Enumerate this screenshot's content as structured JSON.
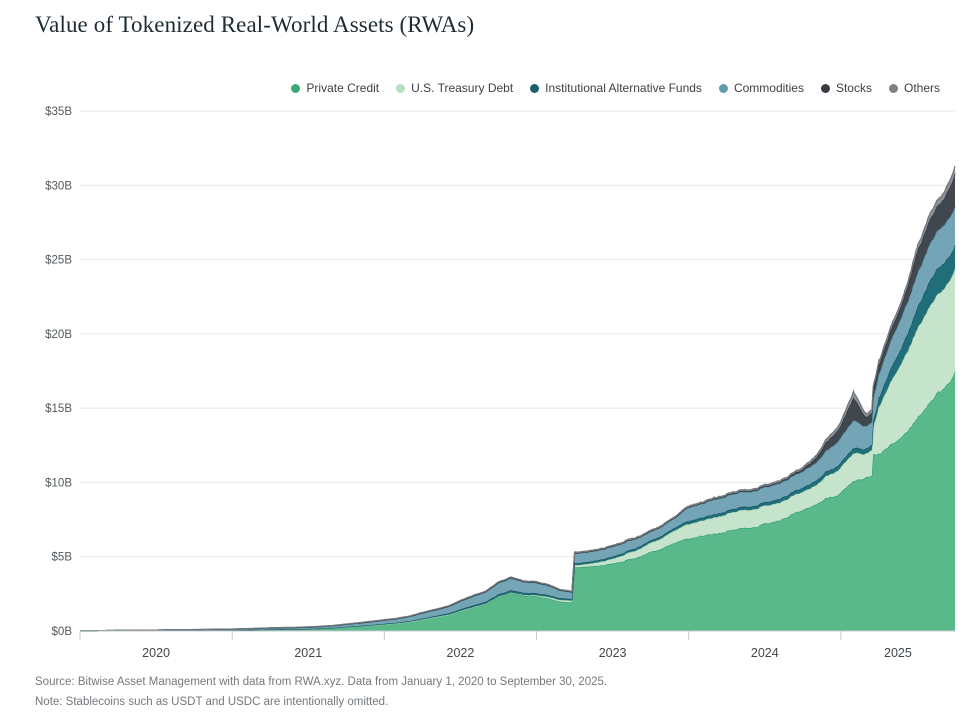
{
  "title": "Value of Tokenized Real-World Assets (RWAs)",
  "footer": {
    "source": "Source: Bitwise Asset Management with data from RWA.xyz. Data from January 1, 2020 to September 30, 2025.",
    "note": "Note: Stablecoins such as USDT and USDC are intentionally omitted."
  },
  "chart_data": {
    "type": "area",
    "stacked": true,
    "title": "Value of Tokenized Real-World Assets (RWAs)",
    "unit": "USD billions",
    "grid": "horizontal",
    "legend_position": "top-right",
    "ylim": [
      0,
      35
    ],
    "y_tick_labels": [
      "$0B",
      "$5B",
      "$10B",
      "$15B",
      "$20B",
      "$25B",
      "$30B",
      "$35B"
    ],
    "x_year_labels": [
      "2020",
      "2021",
      "2022",
      "2023",
      "2024",
      "2025"
    ],
    "x_range": [
      "2020-01-01",
      "2025-09-30"
    ],
    "t_months": [
      0,
      1,
      2,
      3,
      4,
      5,
      6,
      7,
      8,
      9,
      10,
      11,
      12,
      13,
      14,
      15,
      16,
      17,
      18,
      19,
      20,
      21,
      22,
      23,
      24,
      25,
      26,
      27,
      28,
      29,
      30,
      31,
      32,
      33,
      34,
      35,
      36,
      37,
      38,
      38.8,
      39,
      40,
      41,
      42,
      43,
      44,
      45,
      46,
      47,
      48,
      49,
      50,
      51,
      52,
      53,
      54,
      55,
      56,
      57,
      58,
      59,
      60,
      61,
      62,
      62.45,
      62.55,
      63,
      64,
      65,
      66,
      67,
      68,
      69
    ],
    "series": [
      {
        "name": "Private Credit",
        "dot": "#3aa878",
        "fill": "#5ab98a",
        "stroke": "#2d9e71",
        "values": [
          0,
          0,
          0.01,
          0.01,
          0.01,
          0.02,
          0.02,
          0.03,
          0.03,
          0.04,
          0.04,
          0.05,
          0.05,
          0.07,
          0.08,
          0.1,
          0.11,
          0.12,
          0.13,
          0.16,
          0.2,
          0.26,
          0.32,
          0.38,
          0.45,
          0.52,
          0.62,
          0.78,
          0.93,
          1.08,
          1.35,
          1.6,
          1.82,
          2.28,
          2.55,
          2.38,
          2.32,
          2.18,
          1.95,
          1.9,
          4.28,
          4.32,
          4.4,
          4.52,
          4.73,
          4.98,
          5.32,
          5.58,
          5.92,
          6.18,
          6.4,
          6.58,
          6.7,
          6.88,
          7.0,
          7.2,
          7.48,
          7.8,
          8.02,
          8.5,
          9.0,
          9.3,
          9.95,
          10.3,
          10.35,
          11.8,
          11.85,
          12.5,
          13.2,
          14.3,
          15.4,
          16.3,
          17.4
        ]
      },
      {
        "name": "U.S. Treasury Debt",
        "dot": "#b9ddc1",
        "fill": "#c5e4cb",
        "stroke": "#a4d3b3",
        "values": [
          0,
          0,
          0,
          0,
          0,
          0,
          0,
          0,
          0,
          0,
          0,
          0,
          0,
          0,
          0,
          0,
          0,
          0,
          0,
          0,
          0,
          0,
          0,
          0,
          0,
          0,
          0,
          0,
          0,
          0,
          0,
          0.01,
          0.02,
          0.03,
          0.04,
          0.05,
          0.08,
          0.1,
          0.12,
          0.12,
          0.15,
          0.18,
          0.25,
          0.32,
          0.42,
          0.52,
          0.62,
          0.72,
          0.84,
          0.98,
          1.02,
          1.1,
          1.18,
          1.2,
          1.2,
          1.2,
          1.2,
          1.2,
          1.22,
          1.3,
          1.5,
          1.7,
          1.9,
          1.62,
          1.75,
          1.8,
          3.2,
          4.3,
          5.2,
          6.0,
          6.5,
          6.7,
          6.9
        ]
      },
      {
        "name": "Institutional Alternative Funds",
        "dot": "#17616d",
        "fill": "#206e79",
        "stroke": "#14525c",
        "values": [
          0,
          0,
          0,
          0,
          0,
          0,
          0,
          0,
          0,
          0,
          0,
          0,
          0,
          0,
          0,
          0,
          0,
          0,
          0.01,
          0.01,
          0.01,
          0.02,
          0.02,
          0.03,
          0.03,
          0.04,
          0.05,
          0.06,
          0.07,
          0.09,
          0.11,
          0.12,
          0.13,
          0.15,
          0.16,
          0.15,
          0.14,
          0.13,
          0.12,
          0.11,
          0.13,
          0.13,
          0.14,
          0.15,
          0.15,
          0.16,
          0.16,
          0.17,
          0.18,
          0.2,
          0.2,
          0.21,
          0.21,
          0.22,
          0.22,
          0.23,
          0.25,
          0.26,
          0.28,
          0.3,
          0.3,
          0.32,
          0.35,
          0.32,
          0.34,
          0.36,
          0.6,
          0.9,
          1.1,
          1.4,
          1.7,
          1.75,
          1.55
        ]
      },
      {
        "name": "Commodities",
        "dot": "#5f9cad",
        "fill": "#74a5b7",
        "stroke": "#4e8699",
        "values": [
          0.02,
          0.02,
          0.02,
          0.03,
          0.03,
          0.04,
          0.04,
          0.05,
          0.05,
          0.05,
          0.06,
          0.06,
          0.07,
          0.08,
          0.09,
          0.1,
          0.11,
          0.11,
          0.12,
          0.13,
          0.15,
          0.17,
          0.19,
          0.22,
          0.25,
          0.27,
          0.31,
          0.37,
          0.41,
          0.46,
          0.55,
          0.62,
          0.67,
          0.79,
          0.83,
          0.75,
          0.72,
          0.65,
          0.52,
          0.48,
          0.68,
          0.68,
          0.68,
          0.7,
          0.68,
          0.64,
          0.6,
          0.64,
          0.68,
          0.92,
          0.94,
          1.0,
          1.0,
          1.0,
          1.0,
          1.02,
          1.05,
          1.05,
          1.1,
          1.2,
          1.45,
          1.7,
          1.88,
          1.5,
          1.52,
          1.54,
          1.62,
          1.9,
          2.1,
          2.3,
          2.5,
          2.6,
          2.6
        ]
      },
      {
        "name": "Stocks",
        "dot": "#383d43",
        "fill": "#41474e",
        "stroke": "#2b3036",
        "values": [
          0,
          0,
          0,
          0,
          0,
          0,
          0,
          0,
          0,
          0,
          0,
          0,
          0,
          0,
          0,
          0,
          0,
          0,
          0,
          0,
          0,
          0,
          0,
          0,
          0,
          0,
          0,
          0,
          0,
          0,
          0,
          0,
          0,
          0,
          0,
          0,
          0,
          0,
          0,
          0,
          0,
          0,
          0,
          0,
          0,
          0,
          0,
          0,
          0.01,
          0.02,
          0.03,
          0.04,
          0.05,
          0.05,
          0.06,
          0.07,
          0.08,
          0.1,
          0.15,
          0.3,
          0.6,
          0.8,
          1.5,
          0.6,
          0.62,
          0.62,
          0.62,
          0.7,
          0.85,
          1.5,
          1.6,
          1.7,
          2.2
        ]
      },
      {
        "name": "Others",
        "dot": "#7c8187",
        "fill": "#8a9096",
        "stroke": "#70767c",
        "values": [
          0,
          0,
          0,
          0,
          0,
          0,
          0,
          0,
          0,
          0.01,
          0.01,
          0.01,
          0.01,
          0.01,
          0.01,
          0.01,
          0.02,
          0.02,
          0.02,
          0.02,
          0.02,
          0.02,
          0.03,
          0.03,
          0.03,
          0.03,
          0.03,
          0.04,
          0.04,
          0.04,
          0.05,
          0.05,
          0.05,
          0.05,
          0.06,
          0.06,
          0.06,
          0.06,
          0.05,
          0.05,
          0.06,
          0.06,
          0.06,
          0.06,
          0.07,
          0.07,
          0.07,
          0.07,
          0.07,
          0.08,
          0.08,
          0.08,
          0.08,
          0.09,
          0.09,
          0.09,
          0.1,
          0.1,
          0.12,
          0.15,
          0.22,
          0.25,
          0.4,
          0.22,
          0.22,
          0.22,
          0.22,
          0.24,
          0.26,
          0.32,
          0.4,
          0.42,
          0.5
        ]
      }
    ]
  }
}
